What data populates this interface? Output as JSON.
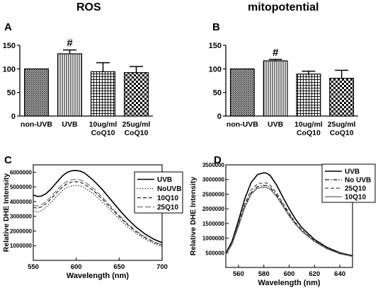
{
  "headers": {
    "left": "ROS",
    "right": "mitopotential"
  },
  "chart_data": [
    {
      "panel": "A",
      "type": "bar",
      "categories": [
        "non-UVB",
        "UVB",
        "10ug/ml CoQ10",
        "25ug/ml CoQ10"
      ],
      "values": [
        100,
        132,
        94,
        92
      ],
      "errors": [
        0,
        8,
        19,
        13
      ],
      "annotations": [
        {
          "category": "UVB",
          "text": "#"
        }
      ],
      "ylim": [
        0,
        150
      ],
      "yticks": [
        0,
        50,
        100,
        150
      ],
      "xlabel": "",
      "ylabel": "",
      "title": ""
    },
    {
      "panel": "B",
      "type": "bar",
      "categories": [
        "non-UVB",
        "UVB",
        "10ug/ml CoQ10",
        "25ug/ml CoQ10"
      ],
      "values": [
        100,
        117,
        89,
        80
      ],
      "errors": [
        0,
        3,
        6,
        17
      ],
      "annotations": [
        {
          "category": "UVB",
          "text": "#"
        }
      ],
      "ylim": [
        0,
        150
      ],
      "yticks": [
        0,
        50,
        100,
        150
      ],
      "xlabel": "",
      "ylabel": "",
      "title": ""
    },
    {
      "panel": "C",
      "type": "line",
      "xlabel": "Wavelength (nm)",
      "ylabel": "Relative DHE Intensity",
      "xlim": [
        550,
        700
      ],
      "ylim": [
        0,
        6500000
      ],
      "xticks": [
        550,
        600,
        650,
        700
      ],
      "yticks": [
        1000000,
        2000000,
        3000000,
        4000000,
        5000000,
        6000000
      ],
      "ytick_labels": [
        "1000000",
        "2000000",
        "3000000",
        "4000000",
        "5000000",
        "6000000"
      ],
      "legend": "top-right",
      "series": [
        {
          "name": "UVB",
          "dash": "solid",
          "color": "#000000",
          "x": [
            550,
            555,
            560,
            565,
            570,
            575,
            580,
            585,
            590,
            595,
            600,
            605,
            610,
            620,
            630,
            640,
            650,
            660,
            670,
            680,
            690,
            700
          ],
          "y": [
            4450000,
            4350000,
            4380000,
            4550000,
            4820000,
            5150000,
            5500000,
            5800000,
            6000000,
            6100000,
            6120000,
            6070000,
            5930000,
            5450000,
            4850000,
            4150000,
            3450000,
            2800000,
            2250000,
            1800000,
            1450000,
            1200000
          ]
        },
        {
          "name": "NoUVB",
          "dash": "dotted",
          "color": "#333333",
          "x": [
            550,
            555,
            560,
            565,
            570,
            575,
            580,
            585,
            590,
            595,
            600,
            605,
            610,
            620,
            630,
            640,
            650,
            660,
            670,
            680,
            690,
            700
          ],
          "y": [
            3350000,
            3300000,
            3400000,
            3620000,
            3900000,
            4200000,
            4520000,
            4800000,
            4980000,
            5080000,
            5100000,
            5060000,
            4940000,
            4530000,
            4000000,
            3400000,
            2820000,
            2280000,
            1820000,
            1450000,
            1150000,
            950000
          ]
        },
        {
          "name": "10Q10",
          "dash": "dashed",
          "color": "#222222",
          "x": [
            550,
            555,
            560,
            565,
            570,
            575,
            580,
            585,
            590,
            595,
            600,
            605,
            610,
            620,
            630,
            640,
            650,
            660,
            670,
            680,
            690,
            700
          ],
          "y": [
            3600000,
            3550000,
            3650000,
            3860000,
            4150000,
            4460000,
            4780000,
            5050000,
            5230000,
            5330000,
            5350000,
            5310000,
            5180000,
            4750000,
            4200000,
            3580000,
            2980000,
            2420000,
            1940000,
            1550000,
            1240000,
            1020000
          ]
        },
        {
          "name": "25Q10",
          "dash": "longdash",
          "color": "#777777",
          "x": [
            550,
            555,
            560,
            565,
            570,
            575,
            580,
            585,
            590,
            595,
            600,
            605,
            610,
            620,
            630,
            640,
            650,
            660,
            670,
            680,
            690,
            700
          ],
          "y": [
            3750000,
            3700000,
            3800000,
            4020000,
            4300000,
            4620000,
            4940000,
            5210000,
            5390000,
            5490000,
            5510000,
            5470000,
            5340000,
            4900000,
            4330000,
            3690000,
            3070000,
            2490000,
            2000000,
            1600000,
            1280000,
            1050000
          ]
        }
      ]
    },
    {
      "panel": "D",
      "type": "line",
      "xlabel": "Wavelength (nm)",
      "ylabel": "Relative DHE Intensity",
      "xlim": [
        550,
        650
      ],
      "ylim": [
        0,
        3500000
      ],
      "xticks": [
        560,
        580,
        600,
        620,
        640
      ],
      "yticks": [
        500000,
        1000000,
        1500000,
        2000000,
        2500000,
        3000000,
        3500000
      ],
      "ytick_labels": [
        "500000",
        "1000000",
        "1500000",
        "2000000",
        "2500000",
        "3000000",
        "3500000"
      ],
      "legend": "top-right",
      "series": [
        {
          "name": "UVB",
          "dash": "solid",
          "color": "#000000",
          "x": [
            550,
            555,
            560,
            565,
            570,
            575,
            580,
            582,
            585,
            590,
            595,
            600,
            605,
            610,
            620,
            630,
            640,
            650
          ],
          "y": [
            480000,
            900000,
            1600000,
            2350000,
            2900000,
            3170000,
            3230000,
            3220000,
            3140000,
            2820000,
            2400000,
            2000000,
            1650000,
            1360000,
            950000,
            680000,
            500000,
            400000
          ]
        },
        {
          "name": "No UVB",
          "dash": "dashdot",
          "color": "#111111",
          "x": [
            550,
            555,
            560,
            565,
            570,
            575,
            580,
            582,
            585,
            590,
            595,
            600,
            605,
            610,
            620,
            630,
            640,
            650
          ],
          "y": [
            440000,
            820000,
            1440000,
            2100000,
            2550000,
            2760000,
            2800000,
            2790000,
            2730000,
            2480000,
            2140000,
            1800000,
            1500000,
            1250000,
            890000,
            640000,
            470000,
            380000
          ]
        },
        {
          "name": "25Q10",
          "dash": "dashed",
          "color": "#444444",
          "x": [
            550,
            555,
            560,
            565,
            570,
            575,
            580,
            582,
            585,
            590,
            595,
            600,
            605,
            610,
            620,
            630,
            640,
            650
          ],
          "y": [
            460000,
            860000,
            1500000,
            2180000,
            2650000,
            2850000,
            2890000,
            2880000,
            2810000,
            2550000,
            2200000,
            1850000,
            1540000,
            1280000,
            910000,
            650000,
            480000,
            390000
          ]
        },
        {
          "name": "10Q10",
          "dash": "solid",
          "color": "#666666",
          "x": [
            550,
            555,
            560,
            565,
            570,
            575,
            580,
            582,
            585,
            590,
            595,
            600,
            605,
            610,
            620,
            630,
            640,
            650
          ],
          "y": [
            430000,
            800000,
            1400000,
            2050000,
            2500000,
            2700000,
            2740000,
            2730000,
            2670000,
            2420000,
            2090000,
            1760000,
            1470000,
            1230000,
            880000,
            630000,
            465000,
            375000
          ]
        }
      ]
    }
  ]
}
